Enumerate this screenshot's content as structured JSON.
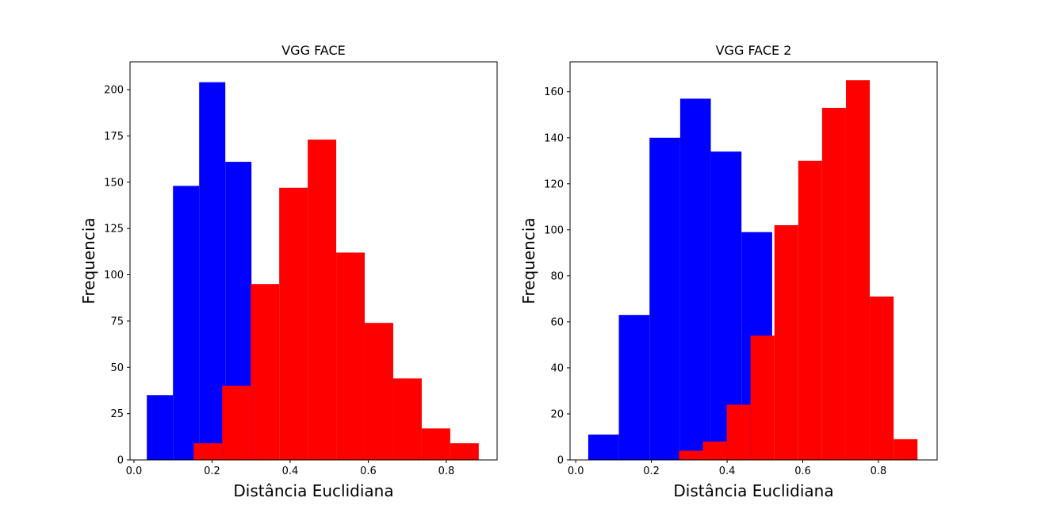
{
  "chart_data": [
    {
      "type": "histogram",
      "title": "VGG FACE",
      "xlabel": "Distância Euclidiana",
      "ylabel": "Frequencia",
      "xlim": [
        -0.01,
        0.93
      ],
      "ylim": [
        0,
        215
      ],
      "xticks": [
        0.0,
        0.2,
        0.4,
        0.6,
        0.8
      ],
      "xtick_labels": [
        "0.0",
        "0.2",
        "0.4",
        "0.6",
        "0.8"
      ],
      "yticks": [
        0,
        25,
        50,
        75,
        100,
        125,
        150,
        175,
        200
      ],
      "ytick_labels": [
        "0",
        "25",
        "50",
        "75",
        "100",
        "125",
        "150",
        "175",
        "200"
      ],
      "grid": false,
      "series": [
        {
          "color": "#0000ff",
          "bin_edges": [
            0.033,
            0.1,
            0.167,
            0.234,
            0.301
          ],
          "values": [
            35,
            148,
            204,
            161
          ]
        },
        {
          "color": "#ff0000",
          "bin_edges": [
            0.153,
            0.226,
            0.299,
            0.372,
            0.445,
            0.518,
            0.591,
            0.664,
            0.737,
            0.81,
            0.883
          ],
          "values": [
            9,
            40,
            95,
            147,
            173,
            112,
            74,
            44,
            17,
            9
          ]
        }
      ]
    },
    {
      "type": "histogram",
      "title": "VGG FACE 2",
      "xlabel": "Distância Euclidiana",
      "ylabel": "Frequencia",
      "xlim": [
        -0.015,
        0.955
      ],
      "ylim": [
        0,
        173
      ],
      "xticks": [
        0.0,
        0.2,
        0.4,
        0.6,
        0.8
      ],
      "xtick_labels": [
        "0.0",
        "0.2",
        "0.4",
        "0.6",
        "0.8"
      ],
      "yticks": [
        0,
        20,
        40,
        60,
        80,
        100,
        120,
        140,
        160
      ],
      "ytick_labels": [
        "0",
        "20",
        "40",
        "60",
        "80",
        "100",
        "120",
        "140",
        "160"
      ],
      "grid": false,
      "series": [
        {
          "color": "#0000ff",
          "bin_edges": [
            0.033,
            0.114,
            0.195,
            0.276,
            0.357,
            0.438,
            0.519
          ],
          "values": [
            11,
            63,
            140,
            157,
            134,
            99
          ]
        },
        {
          "color": "#ff0000",
          "bin_edges": [
            0.273,
            0.336,
            0.399,
            0.462,
            0.525,
            0.588,
            0.651,
            0.714,
            0.777,
            0.84,
            0.903
          ],
          "values": [
            4,
            8,
            24,
            54,
            102,
            130,
            153,
            165,
            71,
            9
          ]
        }
      ]
    }
  ]
}
